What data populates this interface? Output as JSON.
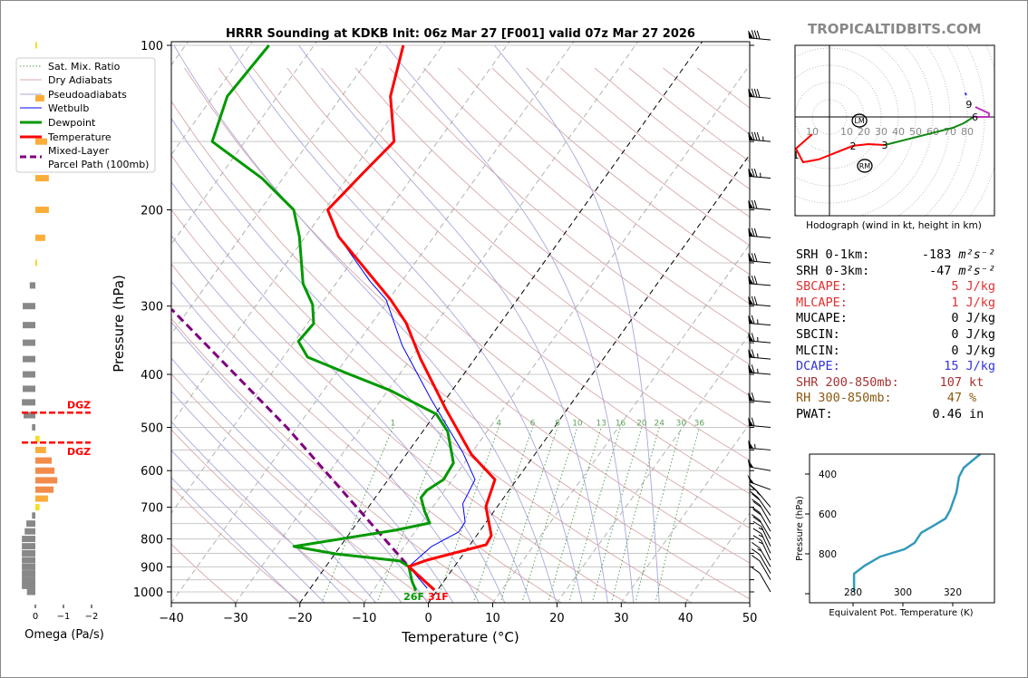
{
  "brand": "TROPICALTIDBITS.COM",
  "stats": [
    {
      "label": "SRH 0-1km:",
      "value": "-183",
      "unit": "m²s⁻²",
      "color": "#000000"
    },
    {
      "label": "SRH 0-3km:",
      "value": "-47",
      "unit": "m²s⁻²",
      "color": "#000000"
    },
    {
      "label": "SBCAPE:",
      "value": "5",
      "unit": "J/kg",
      "color": "#e03030"
    },
    {
      "label": "MLCAPE:",
      "value": "1",
      "unit": "J/kg",
      "color": "#e03030"
    },
    {
      "label": "MUCAPE:",
      "value": "0",
      "unit": "J/kg",
      "color": "#000000"
    },
    {
      "label": "SBCIN:",
      "value": "0",
      "unit": "J/kg",
      "color": "#000000"
    },
    {
      "label": "MLCIN:",
      "value": "0",
      "unit": "J/kg",
      "color": "#000000"
    },
    {
      "label": "DCAPE:",
      "value": "15",
      "unit": "J/kg",
      "color": "#3333dd"
    },
    {
      "label": "SHR 200-850mb:",
      "value": "107",
      "unit": "kt",
      "color": "#a83232"
    },
    {
      "label": "RH 300-850mb:",
      "value": "47",
      "unit": "%",
      "color": "#8a5a10"
    },
    {
      "label": "PWAT:",
      "value": "0.46",
      "unit": "in",
      "color": "#000000"
    }
  ],
  "colors": {
    "temperature": "#ff0000",
    "dewpoint": "#009900",
    "wetbulb": "#0000ff",
    "parcel": "#800080",
    "dry_adiabat": "#d8a8a8",
    "pseudoadiabat": "#a8a8dc",
    "mixing_ratio": "#5aa05a",
    "theta_e": "#3399bb"
  },
  "chart_data": [
    {
      "type": "line",
      "title": "HRRR Sounding at KDKB Init: 06z Mar 27 [F001] valid 07z Mar 27 2026",
      "xlabel": "Temperature (°C)",
      "ylabel": "Pressure (hPa)",
      "xlim": [
        -40,
        50
      ],
      "ylim": [
        1050,
        100
      ],
      "xticks": [
        "−40",
        "−30",
        "−20",
        "−10",
        "0",
        "10",
        "20",
        "30",
        "40",
        "50"
      ],
      "yticks": [
        "100",
        "200",
        "300",
        "400",
        "500",
        "600",
        "700",
        "800",
        "900",
        "1000"
      ],
      "legend": {
        "placement": "top-left",
        "entries": [
          "Sat. Mix. Ratio",
          "Dry Adiabats",
          "Pseudoadiabats",
          "Wetbulb",
          "Dewpoint",
          "Temperature",
          "Mixed-Layer",
          "Parcel Path (100mb)"
        ]
      },
      "mixing_ratio_labels": [
        "1",
        "2",
        "4",
        "6",
        "8",
        "10",
        "13",
        "16",
        "20",
        "24",
        "30",
        "36"
      ],
      "surface_labels": {
        "dewpoint": "26F",
        "temperature": "31F"
      },
      "series": [
        {
          "name": "Temperature",
          "points": [
            [
              100,
              -66.1
            ],
            [
              124,
              -62.4
            ],
            [
              150,
              -56.8
            ],
            [
              171,
              -58.1
            ],
            [
              200,
              -59.5
            ],
            [
              224,
              -54.8
            ],
            [
              292,
              -39.7
            ],
            [
              322,
              -34.7
            ],
            [
              375,
              -28.4
            ],
            [
              462,
              -19
            ],
            [
              560,
              -9.9
            ],
            [
              623,
              -3.4
            ],
            [
              698,
              -1.8
            ],
            [
              789,
              2.3
            ],
            [
              820,
              2.5
            ],
            [
              875,
              -5
            ],
            [
              899,
              -7.1
            ],
            [
              992,
              -0.5
            ]
          ]
        },
        {
          "name": "Dewpoint",
          "points": [
            [
              100,
              -87
            ],
            [
              124,
              -87.8
            ],
            [
              150,
              -85.1
            ],
            [
              175,
              -73.3
            ],
            [
              200,
              -64.8
            ],
            [
              224,
              -60.9
            ],
            [
              273,
              -55.1
            ],
            [
              298,
              -51.3
            ],
            [
              323,
              -49
            ],
            [
              348,
              -49.4
            ],
            [
              372,
              -46.2
            ],
            [
              397,
              -38.6
            ],
            [
              428,
              -29.6
            ],
            [
              473,
              -19.8
            ],
            [
              509,
              -16.1
            ],
            [
              581,
              -11.7
            ],
            [
              623,
              -11.4
            ],
            [
              652,
              -12.8
            ],
            [
              672,
              -12.9
            ],
            [
              712,
              -10.8
            ],
            [
              748,
              -8.7
            ],
            [
              771,
              -13.2
            ],
            [
              826,
              -27.2
            ],
            [
              852,
              -19.8
            ],
            [
              878,
              -9.1
            ],
            [
              899,
              -7.1
            ],
            [
              955,
              -5
            ],
            [
              995,
              -3.3
            ]
          ]
        },
        {
          "name": "Wetbulb",
          "points": [
            [
              100,
              -66.1
            ],
            [
              124,
              -62.4
            ],
            [
              150,
              -56.8
            ],
            [
              171,
              -58.1
            ],
            [
              200,
              -59.5
            ],
            [
              224,
              -54.8
            ],
            [
              270,
              -45
            ],
            [
              292,
              -40.4
            ],
            [
              354,
              -32.8
            ],
            [
              445,
              -22.2
            ],
            [
              556,
              -11.4
            ],
            [
              623,
              -6.5
            ],
            [
              690,
              -5.7
            ],
            [
              745,
              -3.3
            ],
            [
              777,
              -3.2
            ],
            [
              826,
              -5.8
            ],
            [
              899,
              -7.1
            ],
            [
              985,
              -1.8
            ]
          ]
        },
        {
          "name": "Mixed-Layer Parcel Path (100mb)",
          "points": [
            [
              992,
              -0.5
            ],
            [
              899,
              -7.1
            ],
            [
              500,
              -41.6
            ],
            [
              304,
              -72.7
            ]
          ]
        }
      ],
      "wind_barbs": [
        [
          100,
          265,
          80
        ],
        [
          125,
          265,
          80
        ],
        [
          150,
          265,
          85
        ],
        [
          175,
          265,
          75
        ],
        [
          200,
          265,
          70
        ],
        [
          225,
          265,
          70
        ],
        [
          250,
          265,
          70
        ],
        [
          275,
          265,
          70
        ],
        [
          300,
          265,
          70
        ],
        [
          325,
          265,
          65
        ],
        [
          350,
          265,
          65
        ],
        [
          375,
          265,
          65
        ],
        [
          400,
          265,
          65
        ],
        [
          450,
          265,
          60
        ],
        [
          500,
          265,
          60
        ],
        [
          550,
          265,
          55
        ],
        [
          600,
          260,
          50
        ],
        [
          650,
          250,
          50
        ],
        [
          700,
          220,
          25
        ],
        [
          725,
          215,
          20
        ],
        [
          750,
          210,
          20
        ],
        [
          775,
          210,
          20
        ],
        [
          800,
          210,
          20
        ],
        [
          825,
          205,
          15
        ],
        [
          850,
          205,
          15
        ],
        [
          875,
          205,
          15
        ],
        [
          900,
          210,
          15
        ],
        [
          925,
          210,
          10
        ],
        [
          950,
          210,
          10
        ],
        [
          1000,
          210,
          10
        ]
      ]
    },
    {
      "type": "bar",
      "xlabel": "Omega (Pa/s)",
      "xticks": [
        "0",
        "−1",
        "−2"
      ],
      "xlim": [
        0.6,
        -2
      ],
      "dgz_label": "DGZ",
      "dgz_pressures": [
        470,
        533
      ],
      "pressures": [
        100,
        125,
        150,
        175,
        200,
        225,
        250,
        275,
        300,
        325,
        350,
        375,
        400,
        425,
        450,
        475,
        500,
        525,
        550,
        575,
        600,
        625,
        650,
        675,
        700,
        725,
        750,
        775,
        800,
        825,
        850,
        875,
        900,
        925,
        950,
        975,
        1000
      ],
      "values": [
        -0.05,
        -0.32,
        -0.42,
        -0.48,
        -0.48,
        -0.35,
        -0.05,
        0.2,
        0.45,
        0.45,
        0.45,
        0.45,
        0.45,
        0.45,
        0.48,
        0.42,
        0.12,
        -0.15,
        -0.38,
        -0.58,
        -0.68,
        -0.78,
        -0.65,
        -0.45,
        -0.15,
        0.12,
        0.32,
        0.38,
        0.48,
        0.48,
        0.48,
        0.48,
        0.48,
        0.48,
        0.48,
        0.48,
        0.3
      ]
    },
    {
      "type": "line",
      "title": "Hodograph (wind in kt, height in km)",
      "ring_labels": [
        "10",
        "10",
        "20",
        "30",
        "40",
        "50",
        "60",
        "70",
        "80"
      ],
      "segments": [
        {
          "color": "#ff0000",
          "points": [
            [
              -10,
              -10
            ],
            [
              -19.5,
              -18.4
            ],
            [
              -15.3,
              -26.3
            ],
            [
              -6.3,
              -24.7
            ],
            [
              13.7,
              -16.8
            ],
            [
              22.6,
              -15.8
            ],
            [
              32.1,
              -16.3
            ]
          ]
        },
        {
          "color": "#118811",
          "points": [
            [
              32.1,
              -16.3
            ],
            [
              71.6,
              -6.3
            ],
            [
              77.9,
              -3.7
            ],
            [
              83.7,
              0
            ]
          ]
        },
        {
          "color": "#bb33bb",
          "points": [
            [
              83.7,
              0
            ],
            [
              92.6,
              0
            ],
            [
              92.6,
              2.1
            ],
            [
              84.7,
              5.8
            ]
          ]
        },
        {
          "color": "#3333ff",
          "points": [
            [
              79.5,
              12.6
            ],
            [
              78.8,
              14
            ]
          ]
        }
      ],
      "height_labels": [
        {
          "text": "1",
          "u": -19.5,
          "v": -22
        },
        {
          "text": "2",
          "u": 13.7,
          "v": -16.8
        },
        {
          "text": "3",
          "u": 32.1,
          "v": -16.3
        },
        {
          "text": "6",
          "u": 84.5,
          "v": 0
        },
        {
          "text": "9",
          "u": 81,
          "v": 7.5
        }
      ],
      "storm_motion": [
        {
          "text": "LM",
          "u": 17.4,
          "v": -3.2
        },
        {
          "text": "RM",
          "u": 20.5,
          "v": -28.4
        }
      ]
    },
    {
      "type": "line",
      "xlabel": "Equivalent Pot. Temperature (K)",
      "ylabel": "Pressure (hPa)",
      "xticks": [
        "280",
        "300",
        "320"
      ],
      "yticks": [
        "400",
        "600",
        "800"
      ],
      "points": [
        [
          990,
          280.4
        ],
        [
          900,
          280.4
        ],
        [
          859,
          284.7
        ],
        [
          814,
          290.9
        ],
        [
          777,
          300.7
        ],
        [
          745,
          304.7
        ],
        [
          695,
          307.3
        ],
        [
          664,
          311.6
        ],
        [
          623,
          317.1
        ],
        [
          582,
          318.9
        ],
        [
          491,
          321.5
        ],
        [
          414,
          322.5
        ],
        [
          368,
          324.4
        ],
        [
          300,
          331
        ]
      ]
    }
  ]
}
